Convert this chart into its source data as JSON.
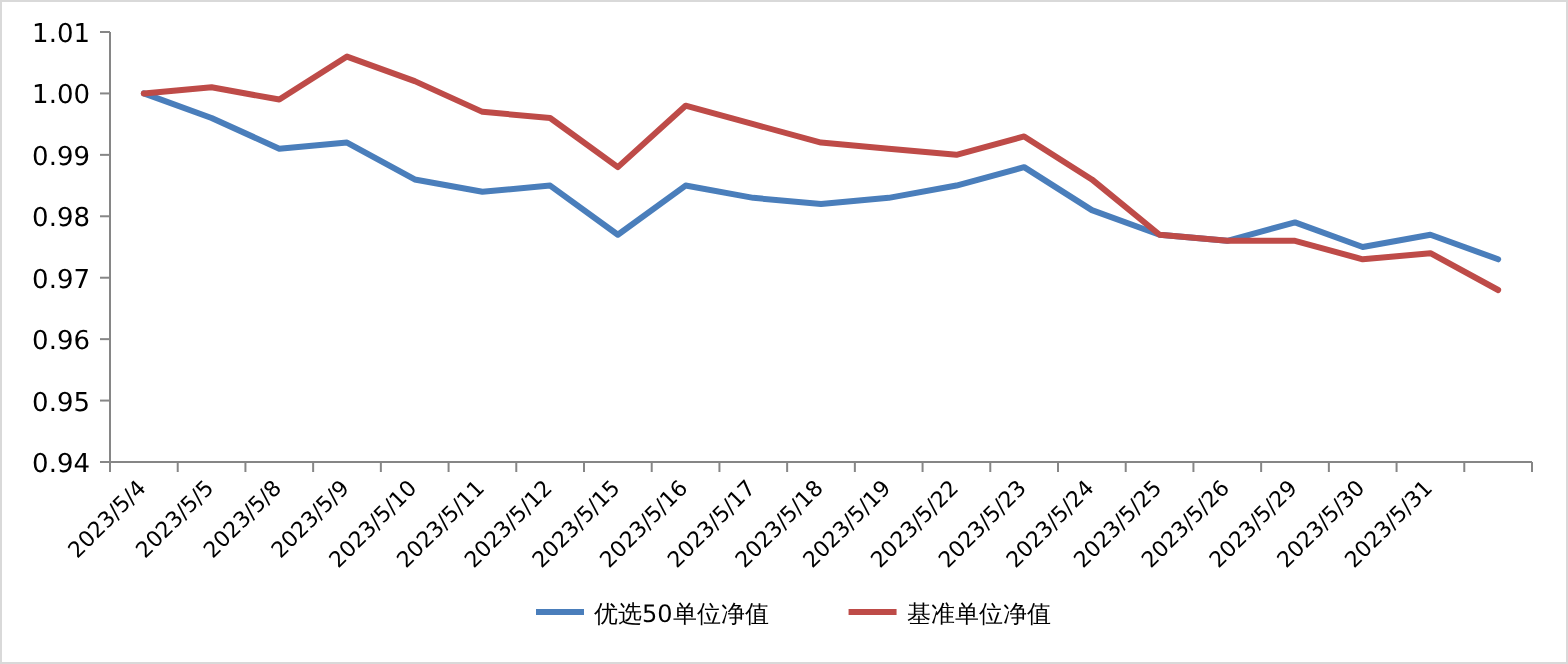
{
  "chart_data": {
    "type": "line",
    "categories": [
      "2023/5/4",
      "2023/5/5",
      "2023/5/8",
      "2023/5/9",
      "2023/5/10",
      "2023/5/11",
      "2023/5/12",
      "2023/5/15",
      "2023/5/16",
      "2023/5/17",
      "2023/5/18",
      "2023/5/19",
      "2023/5/22",
      "2023/5/23",
      "2023/5/24",
      "2023/5/25",
      "2023/5/26",
      "2023/5/29",
      "2023/5/30",
      "2023/5/31",
      null
    ],
    "series": [
      {
        "name": "优选50单位净值",
        "color": "#4a7ebb",
        "values": [
          1.0,
          0.996,
          0.991,
          0.992,
          0.986,
          0.984,
          0.985,
          0.977,
          0.985,
          0.983,
          0.982,
          0.983,
          0.985,
          0.988,
          0.981,
          0.977,
          0.976,
          0.979,
          0.975,
          0.977,
          0.973
        ]
      },
      {
        "name": "基准单位净值",
        "color": "#be4b48",
        "values": [
          1.0,
          1.001,
          0.999,
          1.006,
          1.002,
          0.997,
          0.996,
          0.988,
          0.998,
          0.995,
          0.992,
          0.991,
          0.99,
          0.993,
          0.986,
          0.977,
          0.976,
          0.976,
          0.973,
          0.974,
          0.968
        ]
      }
    ],
    "ylim": [
      0.94,
      1.01
    ],
    "yticks": [
      0.94,
      0.95,
      0.96,
      0.97,
      0.98,
      0.99,
      {
        "value": 1.0,
        "label": "1.00"
      },
      1.01
    ],
    "grid": false,
    "legend": "bottom",
    "marker": "none",
    "line_style": "solid"
  }
}
